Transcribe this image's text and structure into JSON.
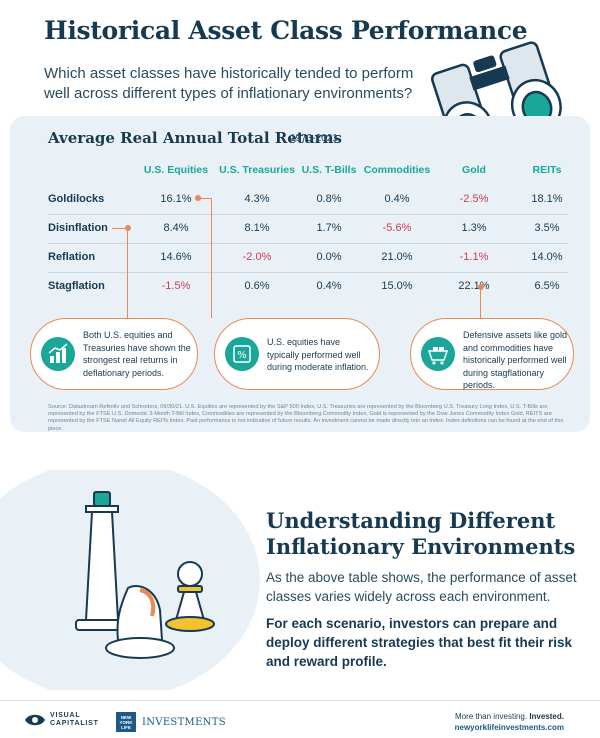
{
  "header": {
    "title": "Historical Asset Class Performance",
    "subtitle": "Which asset classes have historically tended to perform well across different types of inflationary environments?"
  },
  "table": {
    "title": "Average Real Annual Total Returns",
    "period": "1973-2021",
    "columns": [
      "U.S. Equities",
      "U.S. Treasuries",
      "U.S. T-Bills",
      "Commodities",
      "Gold",
      "REITs"
    ],
    "rows": [
      {
        "label": "Goldilocks",
        "values": [
          "16.1%",
          "4.3%",
          "0.8%",
          "0.4%",
          "-2.5%",
          "18.1%"
        ]
      },
      {
        "label": "Disinflation",
        "values": [
          "8.4%",
          "8.1%",
          "1.7%",
          "-5.6%",
          "1.3%",
          "3.5%"
        ]
      },
      {
        "label": "Reflation",
        "values": [
          "14.6%",
          "-2.0%",
          "0.0%",
          "21.0%",
          "-1.1%",
          "14.0%"
        ]
      },
      {
        "label": "Stagflation",
        "values": [
          "-1.5%",
          "0.6%",
          "0.4%",
          "15.0%",
          "22.1%",
          "6.5%"
        ]
      }
    ]
  },
  "callouts": [
    {
      "text": "Both U.S. equities and Treasuries have shown the strongest real returns in deflationary periods.",
      "icon": "growth-chart-icon"
    },
    {
      "text": "U.S. equities have typically performed well during moderate inflation.",
      "icon": "percent-chart-icon"
    },
    {
      "text": "Defensive assets like gold and commodities have historically performed well during stagflationary periods.",
      "icon": "gold-cart-icon"
    }
  ],
  "source": "Source: Datastream Refinitiv and Schroders, 09/30/21. U.S. Equities are represented by the S&P 500 Index, U.S. Treasuries are represented by the Bloomberg U.S. Treasury Long Index, U.S. T-Bills are represented by the FTSE U.S. Domestic 3-Month T-Bill Index, Commodities are represented by the Bloomberg Commodity Index, Gold is represented by the Dow Jones Commodity Index Gold, REITS are represented by the FTSE Nareit All Equity REITs Index. Past performance is not indicative of future results. An investment cannot be made directly into an index. Index definitions can be found at the end of this piece.",
  "section2": {
    "heading": "Understanding Different Inflationary Environments",
    "paragraph": "As the above table shows, the performance of asset classes varies widely across each environment.",
    "bold_paragraph": "For each scenario, investors can prepare and deploy different strategies that best fit their risk and reward profile."
  },
  "footer": {
    "vc_line1": "VISUAL",
    "vc_line2": "CAPITALIST",
    "nyl_box": "NEW YORK LIFE",
    "nyl_text": "INVESTMENTS",
    "tagline_plain": "More than investing. ",
    "tagline_bold": "Invested.",
    "url": "newyorklifeinvestments.com"
  },
  "colors": {
    "navy": "#173a52",
    "teal": "#1aa79a",
    "negative": "#d23a55",
    "accent_orange": "#e98a55",
    "panel_bg": "#e9f0f6"
  }
}
